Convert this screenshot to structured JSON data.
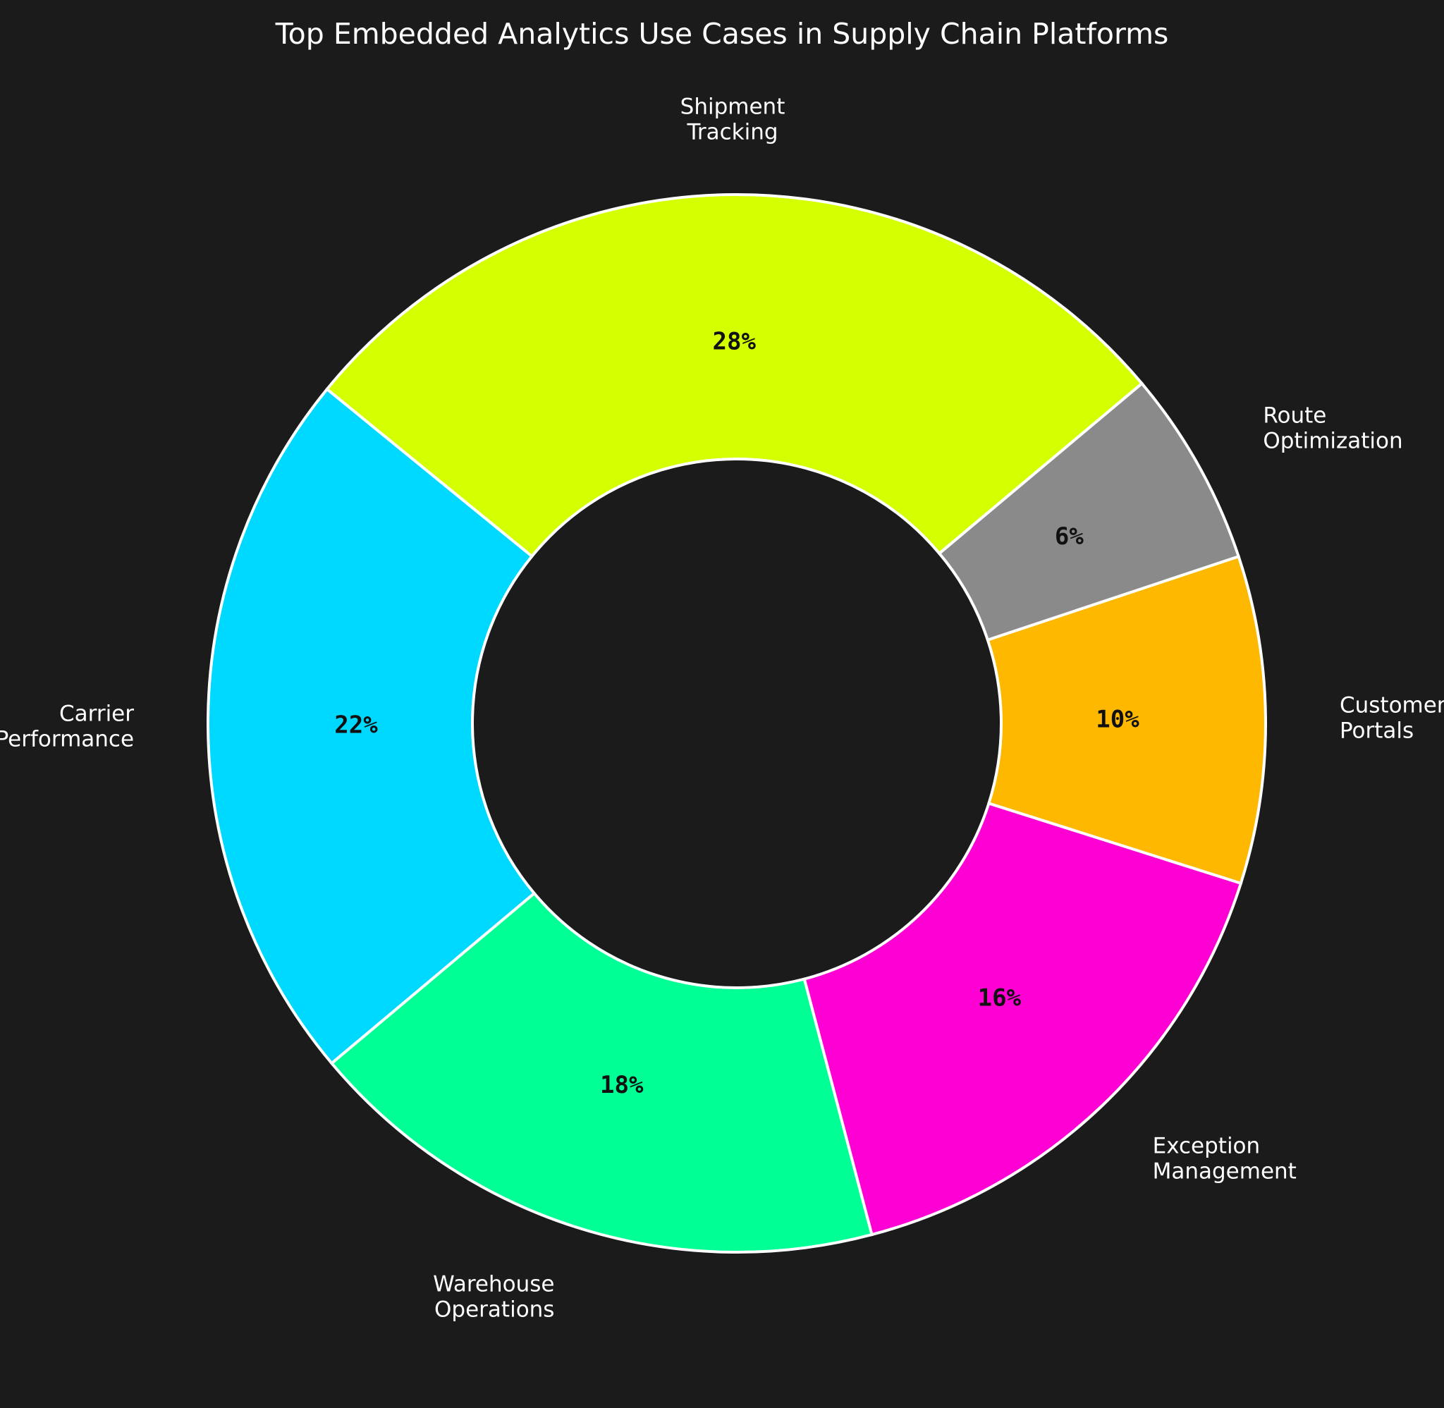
{
  "chart_data": {
    "type": "pie",
    "variant": "donut",
    "title": "Top Embedded Analytics Use Cases in Supply Chain Platforms",
    "categories": [
      "Shipment Tracking",
      "Carrier Performance",
      "Warehouse Operations",
      "Exception Management",
      "Customer Portals",
      "Route Optimization"
    ],
    "label_lines": [
      [
        "Shipment",
        "Tracking"
      ],
      [
        "Carrier",
        "Performance"
      ],
      [
        "Warehouse",
        "Operations"
      ],
      [
        "Exception",
        "Management"
      ],
      [
        "Customer",
        "Portals"
      ],
      [
        "Route",
        "Optimization"
      ]
    ],
    "values": [
      28,
      22,
      18,
      16,
      10,
      6
    ],
    "value_labels": [
      "28%",
      "22%",
      "18%",
      "16%",
      "10%",
      "6%"
    ],
    "colors": [
      "#d4ff00",
      "#00d9ff",
      "#00ff94",
      "#ff00d4",
      "#ffb800",
      "#8a8a8a"
    ],
    "start_angle_deg": 40,
    "direction": "counterclockwise",
    "legend": "none",
    "background": "#1b1b1b"
  }
}
